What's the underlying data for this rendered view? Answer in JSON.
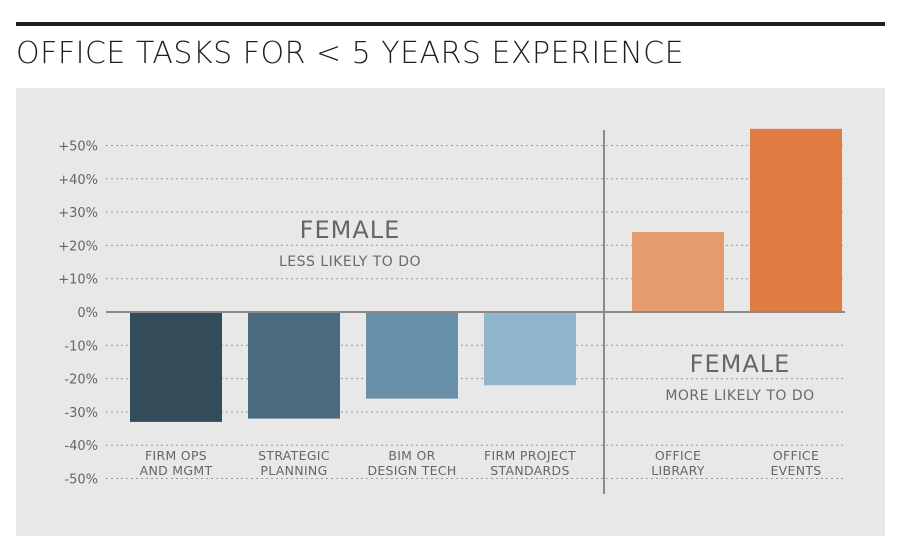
{
  "title": "OFFICE TASKS FOR < 5 YEARS EXPERIENCE",
  "chart_data": {
    "type": "bar",
    "title": "OFFICE TASKS FOR < 5 YEARS EXPERIENCE",
    "ylim": [
      -50,
      50
    ],
    "yticks": [
      "+50%",
      "+40%",
      "+30%",
      "+20%",
      "+10%",
      "0%",
      "-10%",
      "-20%",
      "-30%",
      "-40%",
      "-50%"
    ],
    "ytick_values": [
      50,
      40,
      30,
      20,
      10,
      0,
      -10,
      -20,
      -30,
      -40,
      -50
    ],
    "grid": true,
    "categories": [
      [
        "FIRM OPS",
        "AND MGMT"
      ],
      [
        "STRATEGIC",
        "PLANNING"
      ],
      [
        "BIM OR",
        "DESIGN TECH"
      ],
      [
        "FIRM PROJECT",
        "STANDARDS"
      ],
      [
        "OFFICE",
        "LIBRARY"
      ],
      [
        "OFFICE",
        "EVENTS"
      ]
    ],
    "values": [
      -33,
      -32,
      -26,
      -22,
      24,
      55
    ],
    "colors": [
      "#344b5a",
      "#4a6a80",
      "#6790a8",
      "#8fb6cc",
      "#e59b6b",
      "#e07c42"
    ],
    "annotations": [
      {
        "heading": "FEMALE",
        "sub": "LESS LIKELY TO DO"
      },
      {
        "heading": "FEMALE",
        "sub": "MORE LIKELY TO DO"
      }
    ]
  }
}
